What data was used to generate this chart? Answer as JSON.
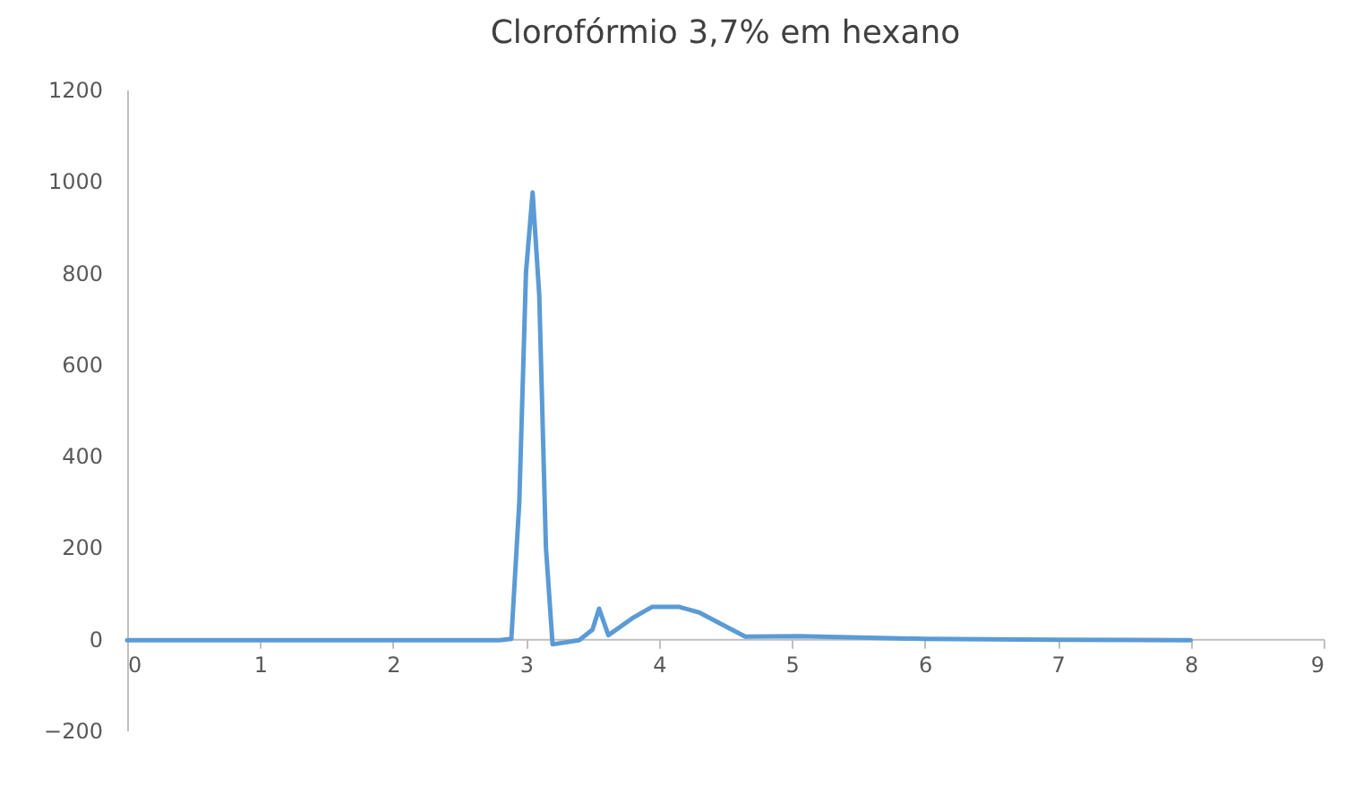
{
  "chart_data": {
    "type": "line",
    "title": "Clorofórmio 3,7% em hexano",
    "x": [
      0,
      0.5,
      1,
      1.5,
      2,
      2.5,
      2.8,
      2.89,
      2.95,
      3.0,
      3.05,
      3.1,
      3.15,
      3.2,
      3.4,
      3.5,
      3.55,
      3.62,
      3.8,
      3.95,
      4.15,
      4.3,
      4.45,
      4.65,
      5.05,
      6,
      7,
      8
    ],
    "series": [
      {
        "color": "#5b9bd5",
        "values": [
          -3,
          -3,
          -3,
          -3,
          -3,
          -3,
          -3,
          0,
          300,
          800,
          975,
          750,
          200,
          -12,
          -3,
          20,
          66,
          8,
          45,
          70,
          70,
          58,
          35,
          5,
          6,
          0,
          -2,
          -3
        ]
      }
    ],
    "xlim": [
      0,
      9
    ],
    "xticks": [
      0,
      1,
      2,
      3,
      4,
      5,
      6,
      7,
      8,
      9
    ],
    "ylim": [
      -200,
      1200
    ],
    "yticks": [
      -200,
      0,
      200,
      400,
      600,
      800,
      1000,
      1200
    ],
    "grid": false,
    "legend": false,
    "marker": "none",
    "line_style": "solid"
  }
}
